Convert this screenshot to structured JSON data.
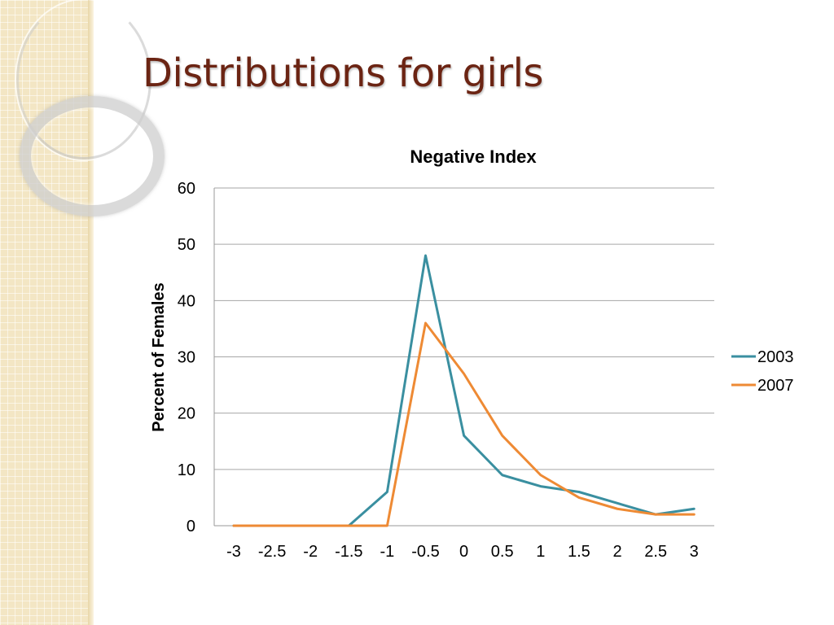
{
  "slide": {
    "title": "Distributions for girls"
  },
  "chart_data": {
    "type": "line",
    "title": "Negative Index",
    "xlabel": "",
    "ylabel": "Percent of Females",
    "categories": [
      "-3",
      "-2.5",
      "-2",
      "-1.5",
      "-1",
      "-0.5",
      "0",
      "0.5",
      "1",
      "1.5",
      "2",
      "2.5",
      "3"
    ],
    "ylim": [
      0,
      60
    ],
    "yticks": [
      0,
      10,
      20,
      30,
      40,
      50,
      60
    ],
    "grid": true,
    "legend": "right",
    "series": [
      {
        "name": "2003",
        "color": "#3a8fa0",
        "values": [
          0,
          0,
          0,
          0,
          6,
          48,
          16,
          9,
          7,
          6,
          4,
          2,
          3
        ]
      },
      {
        "name": "2007",
        "color": "#ee8a34",
        "values": [
          0,
          0,
          0,
          0,
          0,
          36,
          27,
          16,
          9,
          5,
          3,
          2,
          2
        ]
      }
    ]
  }
}
